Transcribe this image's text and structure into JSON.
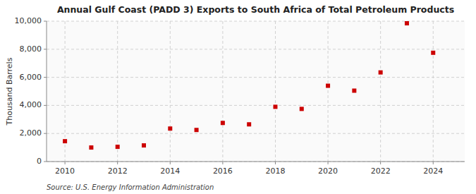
{
  "chart_data": {
    "type": "scatter",
    "title": "Annual Gulf Coast (PADD 3) Exports to South Africa of Total Petroleum Products",
    "y_label": "Thousand Barrels",
    "annotations": [
      "Source: U.S. Energy Information Administration"
    ],
    "x": [
      2010,
      2011,
      2012,
      2013,
      2014,
      2015,
      2016,
      2017,
      2018,
      2019,
      2020,
      2021,
      2022,
      2023,
      2024
    ],
    "values": [
      1450,
      1000,
      1050,
      1150,
      2350,
      2250,
      2750,
      2650,
      3900,
      3750,
      5400,
      5050,
      6350,
      9850,
      7750
    ],
    "color": "#cc0000",
    "marker": "square",
    "xlim": [
      2009.3,
      2025.2
    ],
    "xticks": [
      2010,
      2012,
      2014,
      2016,
      2018,
      2020,
      2022,
      2024
    ],
    "ylim": [
      0,
      10000
    ],
    "yticks": [
      0,
      {
        "value": 2000,
        "label": "2,000"
      },
      {
        "value": 4000,
        "label": "4,000"
      },
      {
        "value": 6000,
        "label": "6,000"
      },
      {
        "value": 8000,
        "label": "8,000"
      },
      {
        "value": 10000,
        "label": "10,000"
      }
    ],
    "grid": true
  }
}
